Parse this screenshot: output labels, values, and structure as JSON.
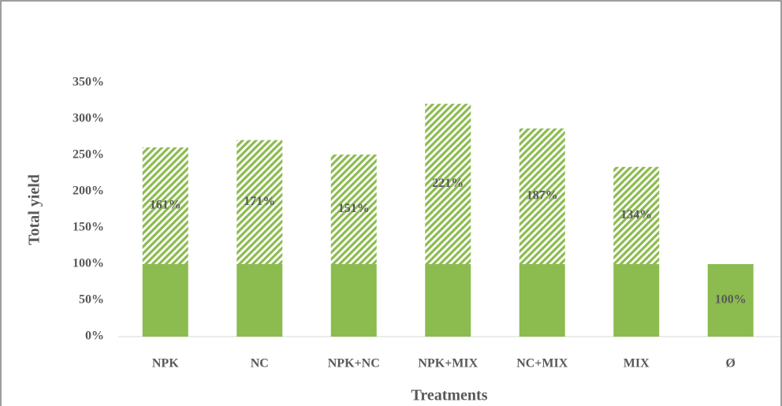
{
  "chart_data": {
    "type": "stacked_bar",
    "y_label": "Total yield",
    "x_label": "Treatments",
    "categories": [
      "NPK",
      "NC",
      "NPK+NC",
      "NPK+MIX",
      "NC+MIX",
      "MIX",
      "Ø"
    ],
    "series": [
      {
        "color": "#8cbb50",
        "fill": "solid",
        "values": [
          100,
          100,
          100,
          100,
          100,
          100,
          100
        ],
        "value_labels": [
          null,
          null,
          null,
          null,
          null,
          null,
          "100%"
        ]
      },
      {
        "color": "#8cbb50",
        "fill": "hatch",
        "values": [
          161,
          171,
          151,
          221,
          187,
          134,
          null
        ],
        "value_labels": [
          "161%",
          "171%",
          "151%",
          "221%",
          "187%",
          "134%",
          null
        ]
      }
    ],
    "ylim": [
      0,
      350
    ],
    "yticks": [
      {
        "value": 0,
        "label": "0%"
      },
      {
        "value": 50,
        "label": "50%"
      },
      {
        "value": 100,
        "label": "100%"
      },
      {
        "value": 150,
        "label": "150%"
      },
      {
        "value": 200,
        "label": "200%"
      },
      {
        "value": 250,
        "label": "250%"
      },
      {
        "value": 300,
        "label": "300%"
      },
      {
        "value": 350,
        "label": "350%"
      }
    ],
    "grid": false
  }
}
